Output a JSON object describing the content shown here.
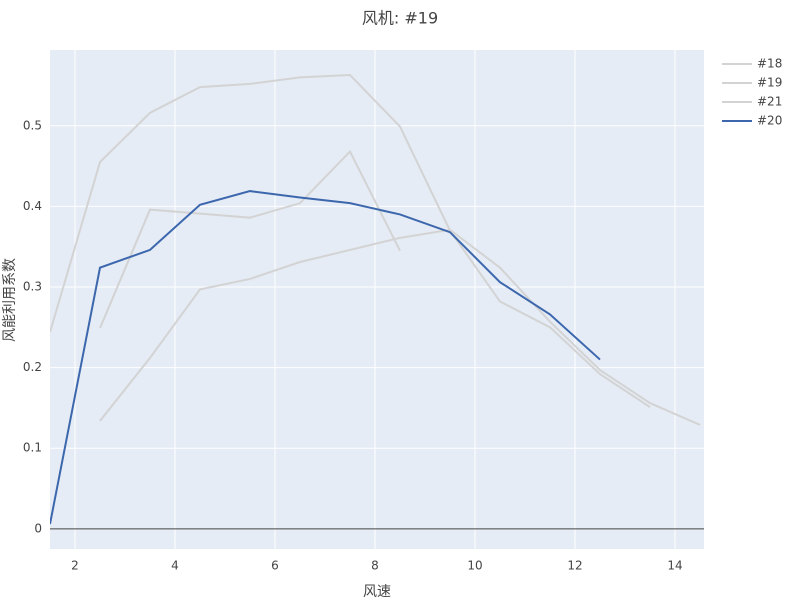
{
  "chart_data": {
    "type": "line",
    "title": "风机: #19",
    "x_label": "风速",
    "y_label": "风能利用系数",
    "x": [
      1.5,
      2.5,
      3.5,
      4.5,
      5.5,
      6.5,
      7.5,
      8.5,
      9.5,
      10.5,
      11.5,
      12.5,
      13.5,
      14.5
    ],
    "series": [
      {
        "name": "#18",
        "color": "#d3d3d3",
        "values": [
          0.244,
          0.455,
          0.516,
          0.548,
          0.552,
          0.56,
          0.563,
          0.499,
          0.37,
          0.282,
          0.25,
          0.192,
          0.151,
          null
        ]
      },
      {
        "name": "#19",
        "color": "#d3d3d3",
        "values": [
          null,
          0.249,
          0.396,
          0.391,
          0.386,
          0.404,
          0.468,
          0.345,
          null,
          null,
          null,
          null,
          null,
          null
        ]
      },
      {
        "name": "#21",
        "color": "#d3d3d3",
        "values": [
          null,
          0.134,
          0.212,
          0.297,
          0.31,
          0.331,
          0.346,
          0.361,
          0.371,
          0.324,
          0.257,
          0.197,
          0.156,
          0.129
        ]
      },
      {
        "name": "#20",
        "color": "#3d67ad",
        "values": [
          0.006,
          0.324,
          0.346,
          0.402,
          0.419,
          0.411,
          0.404,
          0.39,
          0.368,
          0.306,
          0.266,
          0.21,
          null,
          null
        ]
      }
    ],
    "xlim": [
      1.5,
      14.58
    ],
    "xticks": [
      2,
      4,
      6,
      8,
      10,
      12,
      14
    ],
    "ylim": [
      -0.025,
      0.594
    ],
    "yticks": [
      0,
      0.1,
      0.2,
      0.3,
      0.4,
      0.5
    ],
    "grid": true,
    "legend": "right"
  }
}
